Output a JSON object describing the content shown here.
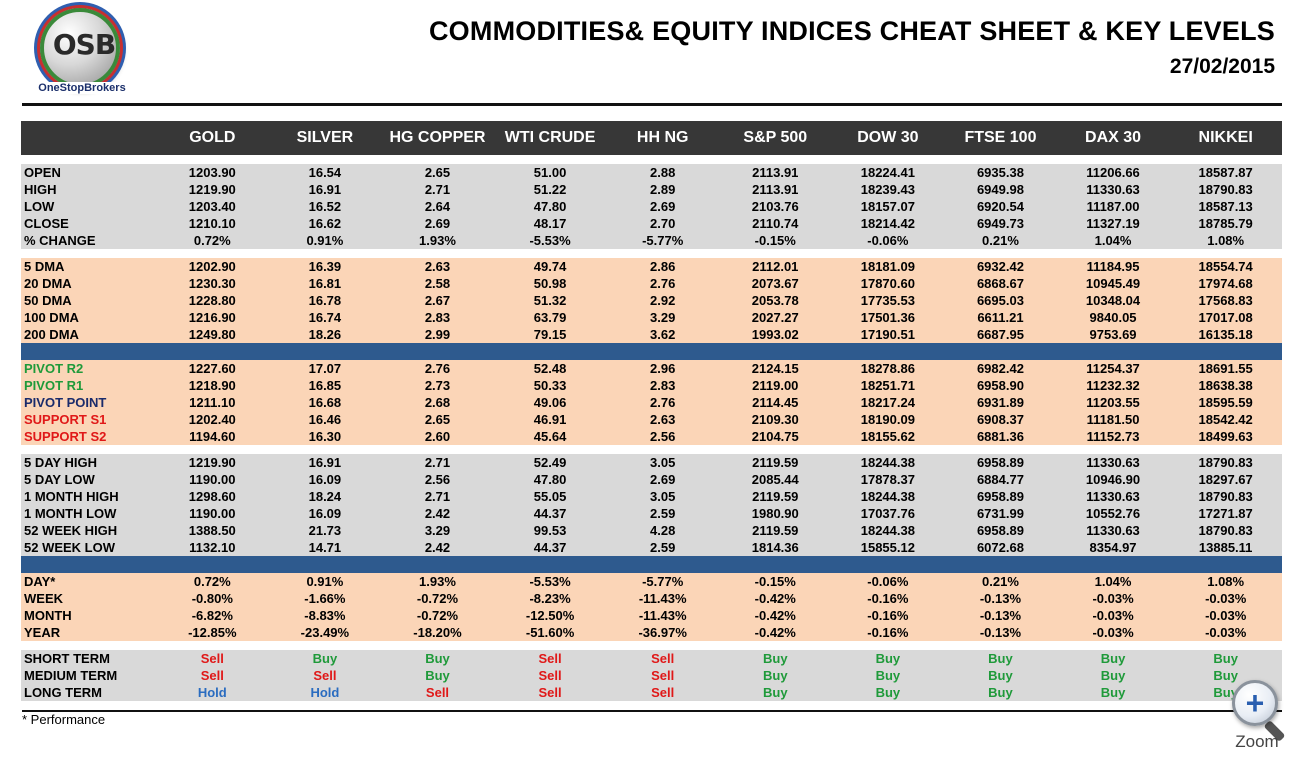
{
  "header": {
    "logo_letters": "OSB",
    "logo_name": "OneStopBrokers",
    "title": "COMMODITIES& EQUITY INDICES CHEAT SHEET & KEY LEVELS",
    "date": "27/02/2015"
  },
  "columns": [
    "GOLD",
    "SILVER",
    "HG COPPER",
    "WTI CRUDE",
    "HH NG",
    "S&P 500",
    "DOW 30",
    "FTSE 100",
    "DAX 30",
    "NIKKEI"
  ],
  "sections": [
    {
      "style": "grey",
      "rows": [
        {
          "label": "OPEN",
          "values": [
            "1203.90",
            "16.54",
            "2.65",
            "51.00",
            "2.88",
            "2113.91",
            "18224.41",
            "6935.38",
            "11206.66",
            "18587.87"
          ]
        },
        {
          "label": "HIGH",
          "values": [
            "1219.90",
            "16.91",
            "2.71",
            "51.22",
            "2.89",
            "2113.91",
            "18239.43",
            "6949.98",
            "11330.63",
            "18790.83"
          ]
        },
        {
          "label": "LOW",
          "values": [
            "1203.40",
            "16.52",
            "2.64",
            "47.80",
            "2.69",
            "2103.76",
            "18157.07",
            "6920.54",
            "11187.00",
            "18587.13"
          ]
        },
        {
          "label": "CLOSE",
          "values": [
            "1210.10",
            "16.62",
            "2.69",
            "48.17",
            "2.70",
            "2110.74",
            "18214.42",
            "6949.73",
            "11327.19",
            "18785.79"
          ]
        },
        {
          "label": "% CHANGE",
          "values": [
            "0.72%",
            "0.91%",
            "1.93%",
            "-5.53%",
            "-5.77%",
            "-0.15%",
            "-0.06%",
            "0.21%",
            "1.04%",
            "1.08%"
          ]
        }
      ]
    },
    {
      "style": "peach",
      "rows": [
        {
          "label": "5 DMA",
          "values": [
            "1202.90",
            "16.39",
            "2.63",
            "49.74",
            "2.86",
            "2112.01",
            "18181.09",
            "6932.42",
            "11184.95",
            "18554.74"
          ]
        },
        {
          "label": "20 DMA",
          "values": [
            "1230.30",
            "16.81",
            "2.58",
            "50.98",
            "2.76",
            "2073.67",
            "17870.60",
            "6868.67",
            "10945.49",
            "17974.68"
          ]
        },
        {
          "label": "50 DMA",
          "values": [
            "1228.80",
            "16.78",
            "2.67",
            "51.32",
            "2.92",
            "2053.78",
            "17735.53",
            "6695.03",
            "10348.04",
            "17568.83"
          ]
        },
        {
          "label": "100 DMA",
          "values": [
            "1216.90",
            "16.74",
            "2.83",
            "63.79",
            "3.29",
            "2027.27",
            "17501.36",
            "6611.21",
            "9840.05",
            "17017.08"
          ]
        },
        {
          "label": "200 DMA",
          "values": [
            "1249.80",
            "18.26",
            "2.99",
            "79.15",
            "3.62",
            "1993.02",
            "17190.51",
            "6687.95",
            "9753.69",
            "16135.18"
          ]
        }
      ]
    },
    {
      "style": "peach",
      "rows": [
        {
          "label": "PIVOT R2",
          "color": "green",
          "values": [
            "1227.60",
            "17.07",
            "2.76",
            "52.48",
            "2.96",
            "2124.15",
            "18278.86",
            "6982.42",
            "11254.37",
            "18691.55"
          ]
        },
        {
          "label": "PIVOT R1",
          "color": "green",
          "values": [
            "1218.90",
            "16.85",
            "2.73",
            "50.33",
            "2.83",
            "2119.00",
            "18251.71",
            "6958.90",
            "11232.32",
            "18638.38"
          ]
        },
        {
          "label": "PIVOT POINT",
          "color": "navy",
          "values": [
            "1211.10",
            "16.68",
            "2.68",
            "49.06",
            "2.76",
            "2114.45",
            "18217.24",
            "6931.89",
            "11203.55",
            "18595.59"
          ]
        },
        {
          "label": "SUPPORT S1",
          "color": "red",
          "values": [
            "1202.40",
            "16.46",
            "2.65",
            "46.91",
            "2.63",
            "2109.30",
            "18190.09",
            "6908.37",
            "11181.50",
            "18542.42"
          ]
        },
        {
          "label": "SUPPORT S2",
          "color": "red",
          "values": [
            "1194.60",
            "16.30",
            "2.60",
            "45.64",
            "2.56",
            "2104.75",
            "18155.62",
            "6881.36",
            "11152.73",
            "18499.63"
          ]
        }
      ]
    },
    {
      "style": "grey",
      "rows": [
        {
          "label": "5 DAY HIGH",
          "values": [
            "1219.90",
            "16.91",
            "2.71",
            "52.49",
            "3.05",
            "2119.59",
            "18244.38",
            "6958.89",
            "11330.63",
            "18790.83"
          ]
        },
        {
          "label": "5 DAY LOW",
          "values": [
            "1190.00",
            "16.09",
            "2.56",
            "47.80",
            "2.69",
            "2085.44",
            "17878.37",
            "6884.77",
            "10946.90",
            "18297.67"
          ]
        },
        {
          "label": "1 MONTH HIGH",
          "values": [
            "1298.60",
            "18.24",
            "2.71",
            "55.05",
            "3.05",
            "2119.59",
            "18244.38",
            "6958.89",
            "11330.63",
            "18790.83"
          ]
        },
        {
          "label": "1 MONTH LOW",
          "values": [
            "1190.00",
            "16.09",
            "2.42",
            "44.37",
            "2.59",
            "1980.90",
            "17037.76",
            "6731.99",
            "10552.76",
            "17271.87"
          ]
        },
        {
          "label": "52 WEEK HIGH",
          "values": [
            "1388.50",
            "21.73",
            "3.29",
            "99.53",
            "4.28",
            "2119.59",
            "18244.38",
            "6958.89",
            "11330.63",
            "18790.83"
          ]
        },
        {
          "label": "52 WEEK LOW",
          "values": [
            "1132.10",
            "14.71",
            "2.42",
            "44.37",
            "2.59",
            "1814.36",
            "15855.12",
            "6072.68",
            "8354.97",
            "13885.11"
          ]
        }
      ]
    },
    {
      "style": "peach",
      "rows": [
        {
          "label": "DAY*",
          "values": [
            "0.72%",
            "0.91%",
            "1.93%",
            "-5.53%",
            "-5.77%",
            "-0.15%",
            "-0.06%",
            "0.21%",
            "1.04%",
            "1.08%"
          ]
        },
        {
          "label": "WEEK",
          "values": [
            "-0.80%",
            "-1.66%",
            "-0.72%",
            "-8.23%",
            "-11.43%",
            "-0.42%",
            "-0.16%",
            "-0.13%",
            "-0.03%",
            "-0.03%"
          ]
        },
        {
          "label": "MONTH",
          "values": [
            "-6.82%",
            "-8.83%",
            "-0.72%",
            "-12.50%",
            "-11.43%",
            "-0.42%",
            "-0.16%",
            "-0.13%",
            "-0.03%",
            "-0.03%"
          ]
        },
        {
          "label": "YEAR",
          "values": [
            "-12.85%",
            "-23.49%",
            "-18.20%",
            "-51.60%",
            "-36.97%",
            "-0.42%",
            "-0.16%",
            "-0.13%",
            "-0.03%",
            "-0.03%"
          ]
        }
      ]
    },
    {
      "style": "grey",
      "signals": true,
      "rows": [
        {
          "label": "SHORT TERM",
          "values": [
            "Sell",
            "Buy",
            "Buy",
            "Sell",
            "Sell",
            "Buy",
            "Buy",
            "Buy",
            "Buy",
            "Buy"
          ]
        },
        {
          "label": "MEDIUM TERM",
          "values": [
            "Sell",
            "Sell",
            "Buy",
            "Sell",
            "Sell",
            "Buy",
            "Buy",
            "Buy",
            "Buy",
            "Buy"
          ]
        },
        {
          "label": "LONG TERM",
          "values": [
            "Hold",
            "Hold",
            "Sell",
            "Sell",
            "Sell",
            "Buy",
            "Buy",
            "Buy",
            "Buy",
            "Buy"
          ]
        }
      ]
    }
  ],
  "separators": [
    "white",
    "white",
    "blue",
    "white",
    "blue",
    "white"
  ],
  "colors": {
    "header_bg": "#373737",
    "grey_band": "#d9d9d9",
    "peach_band": "#fbd5b7",
    "blue_band": "#2e5a8e",
    "buy": "#1f9a3a",
    "sell": "#e01818",
    "hold": "#2a6cc0"
  },
  "footnote": "* Performance",
  "zoom": {
    "label": "Zoom",
    "icon": "zoom-magnifier-icon"
  }
}
